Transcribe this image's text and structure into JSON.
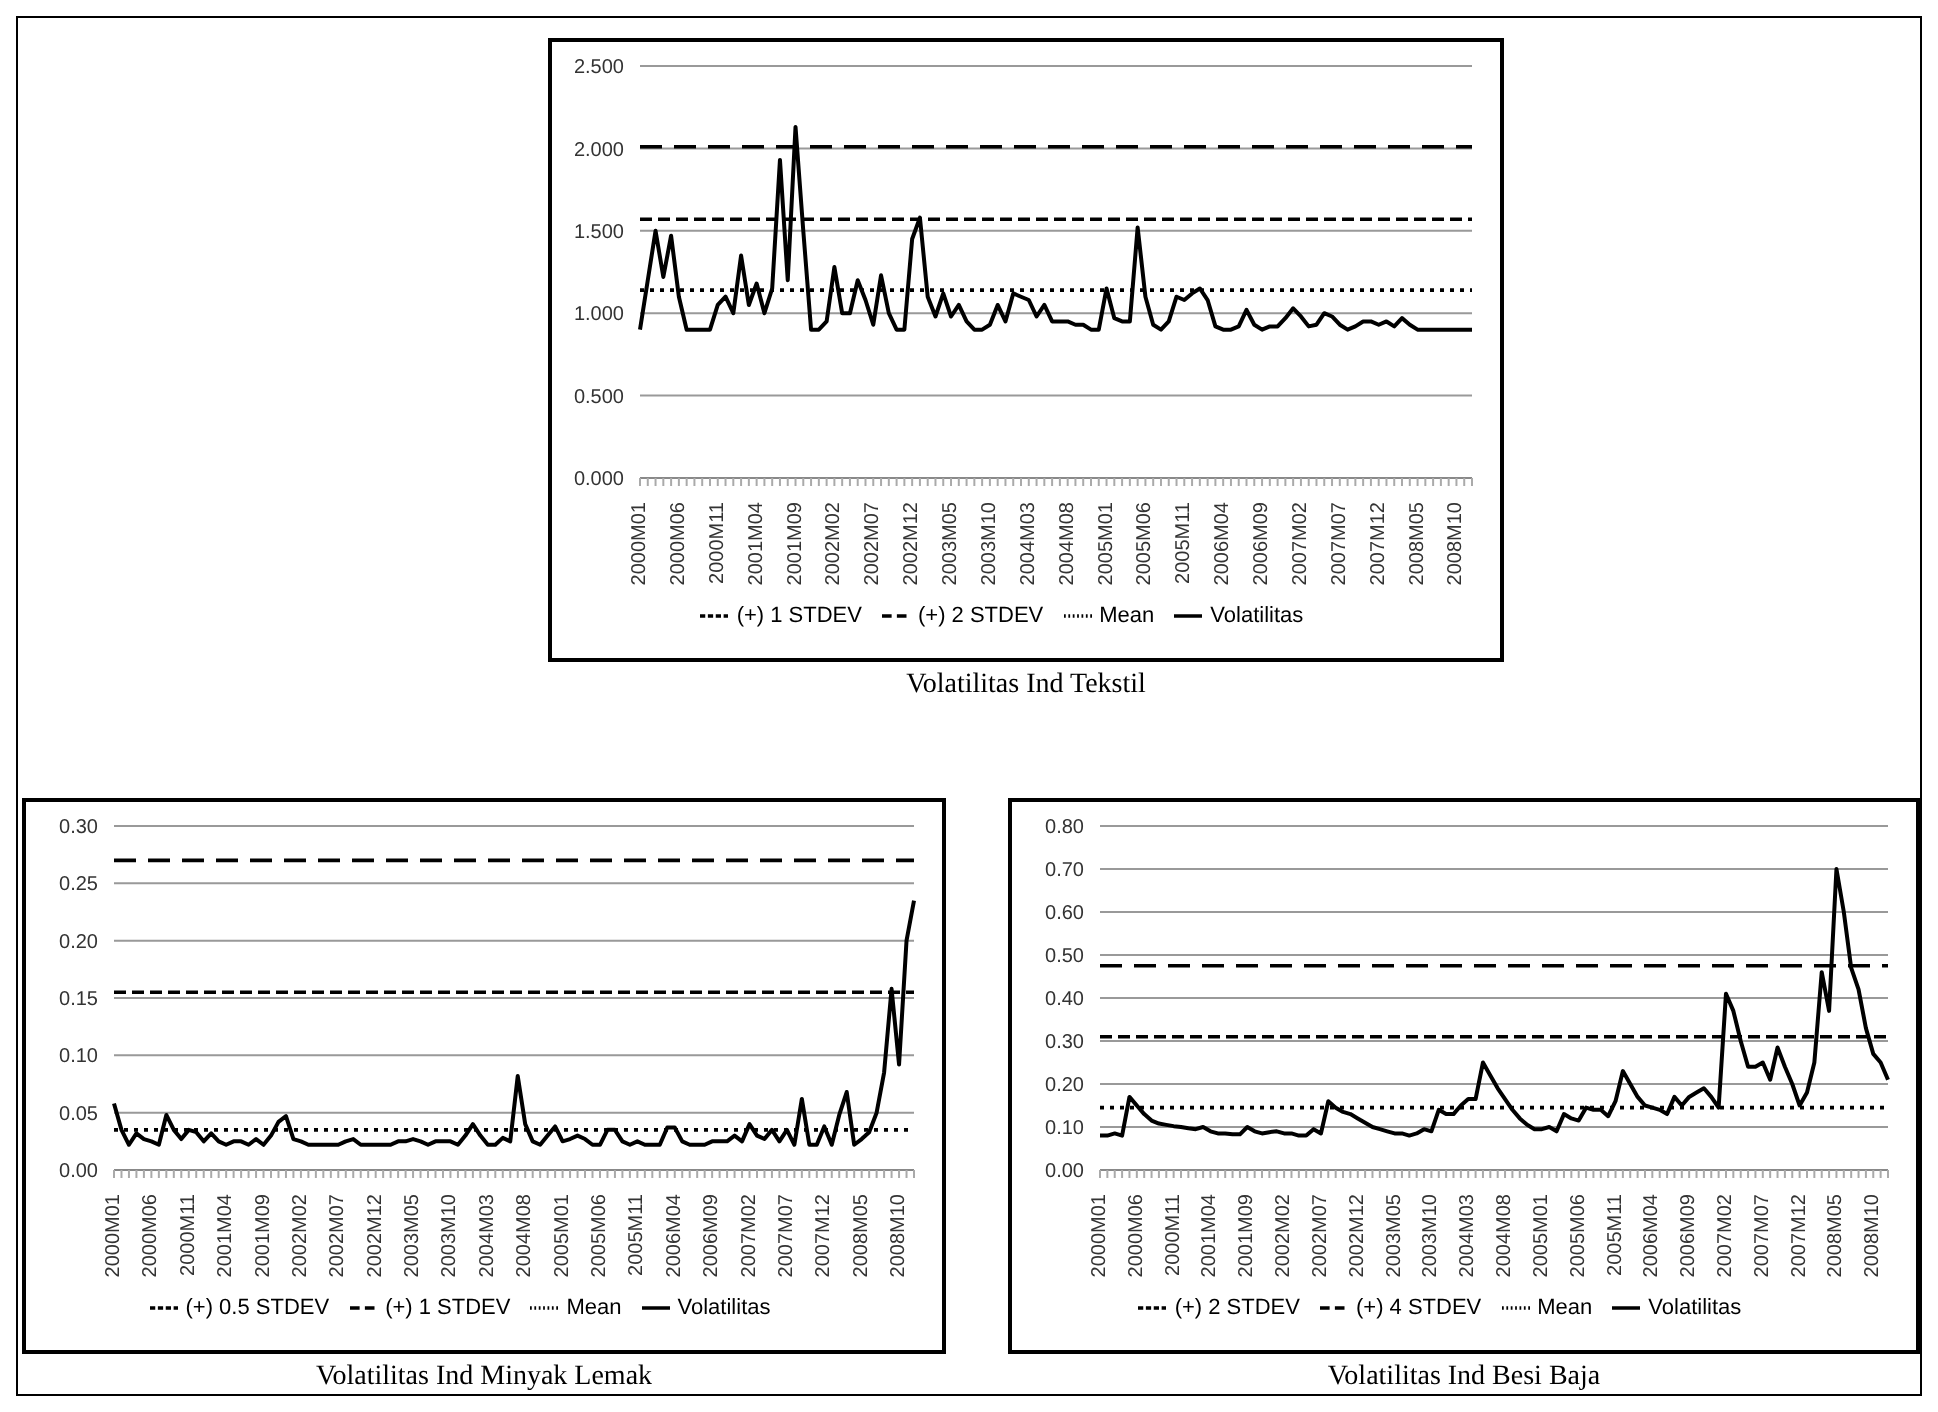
{
  "chart_data": [
    {
      "type": "line",
      "title": "Volatilitas Ind Tekstil",
      "categories": [
        "2000M01",
        null,
        null,
        null,
        null,
        "2000M06",
        null,
        null,
        null,
        null,
        "2000M11",
        null,
        null,
        null,
        null,
        "2001M04",
        null,
        null,
        null,
        null,
        "2001M09",
        null,
        null,
        null,
        null,
        "2002M02",
        null,
        null,
        null,
        null,
        "2002M07",
        null,
        null,
        null,
        null,
        "2002M12",
        null,
        null,
        null,
        null,
        "2003M05",
        null,
        null,
        null,
        null,
        "2003M10",
        null,
        null,
        null,
        null,
        "2004M03",
        null,
        null,
        null,
        null,
        "2004M08",
        null,
        null,
        null,
        null,
        "2005M01",
        null,
        null,
        null,
        null,
        "2005M06",
        null,
        null,
        null,
        null,
        "2005M11",
        null,
        null,
        null,
        null,
        "2006M04",
        null,
        null,
        null,
        null,
        "2006M09",
        null,
        null,
        null,
        null,
        "2007M02",
        null,
        null,
        null,
        null,
        "2007M07",
        null,
        null,
        null,
        null,
        "2007M12",
        null,
        null,
        null,
        null,
        "2008M05",
        null,
        null,
        null,
        null,
        "2008M10",
        null,
        null
      ],
      "ylim": [
        0,
        2.5
      ],
      "yticks": [
        {
          "value": 0,
          "label": "0.000"
        },
        {
          "value": 0.5,
          "label": "0.500"
        },
        {
          "value": 1,
          "label": "1.000"
        },
        {
          "value": 1.5,
          "label": "1.500"
        },
        {
          "value": 2,
          "label": "2.000"
        },
        {
          "value": 2.5,
          "label": "2.500"
        }
      ],
      "grid": "y",
      "legend": "bottom",
      "marker": "none",
      "series": [
        {
          "name": "Volatilitas",
          "color": "#000000",
          "line_style": "solid",
          "values": [
            0.9,
            1.2,
            1.5,
            1.22,
            1.47,
            1.1,
            0.9,
            0.9,
            0.9,
            0.9,
            1.05,
            1.1,
            1.0,
            1.35,
            1.05,
            1.18,
            1.0,
            1.15,
            1.93,
            1.2,
            2.13,
            1.5,
            0.9,
            0.9,
            0.95,
            1.28,
            1.0,
            1.0,
            1.2,
            1.08,
            0.93,
            1.23,
            1.0,
            0.9,
            0.9,
            1.45,
            1.58,
            1.1,
            0.98,
            1.12,
            0.98,
            1.05,
            0.95,
            0.9,
            0.9,
            0.93,
            1.05,
            0.95,
            1.12,
            1.1,
            1.08,
            0.98,
            1.05,
            0.95,
            0.95,
            0.95,
            0.93,
            0.93,
            0.9,
            0.9,
            1.15,
            0.97,
            0.95,
            0.95,
            1.52,
            1.1,
            0.93,
            0.9,
            0.95,
            1.1,
            1.08,
            1.12,
            1.15,
            1.08,
            0.92,
            0.9,
            0.9,
            0.92,
            1.02,
            0.93,
            0.9,
            0.92,
            0.92,
            0.97,
            1.03,
            0.98,
            0.92,
            0.93,
            1.0,
            0.98,
            0.93,
            0.9,
            0.92,
            0.95,
            0.95,
            0.93,
            0.95,
            0.92,
            0.97,
            0.93,
            0.9,
            0.9,
            0.9,
            0.9,
            0.9,
            0.9,
            0.9,
            0.9
          ]
        },
        {
          "name": "Mean",
          "color": "#000000",
          "line_style": "dotted",
          "values": [
            1.14,
            1.14,
            1.14,
            1.14,
            1.14,
            1.14,
            1.14,
            1.14,
            1.14,
            1.14,
            1.14,
            1.14,
            1.14,
            1.14,
            1.14,
            1.14,
            1.14,
            1.14,
            1.14,
            1.14,
            1.14,
            1.14,
            1.14,
            1.14,
            1.14,
            1.14,
            1.14,
            1.14,
            1.14,
            1.14,
            1.14,
            1.14,
            1.14,
            1.14,
            1.14,
            1.14,
            1.14,
            1.14,
            1.14,
            1.14,
            1.14,
            1.14,
            1.14,
            1.14,
            1.14,
            1.14,
            1.14,
            1.14,
            1.14,
            1.14,
            1.14,
            1.14,
            1.14,
            1.14,
            1.14,
            1.14,
            1.14,
            1.14,
            1.14,
            1.14,
            1.14,
            1.14,
            1.14,
            1.14,
            1.14,
            1.14,
            1.14,
            1.14,
            1.14,
            1.14,
            1.14,
            1.14,
            1.14,
            1.14,
            1.14,
            1.14,
            1.14,
            1.14,
            1.14,
            1.14,
            1.14,
            1.14,
            1.14,
            1.14,
            1.14,
            1.14,
            1.14,
            1.14,
            1.14,
            1.14,
            1.14,
            1.14,
            1.14,
            1.14,
            1.14,
            1.14,
            1.14,
            1.14,
            1.14,
            1.14,
            1.14,
            1.14,
            1.14,
            1.14,
            1.14,
            1.14,
            1.14,
            1.14
          ]
        },
        {
          "name": "(+) 1 STDEV",
          "color": "#000000",
          "line_style": "dashed",
          "values": [
            1.57,
            1.57,
            1.57,
            1.57,
            1.57,
            1.57,
            1.57,
            1.57,
            1.57,
            1.57,
            1.57,
            1.57,
            1.57,
            1.57,
            1.57,
            1.57,
            1.57,
            1.57,
            1.57,
            1.57,
            1.57,
            1.57,
            1.57,
            1.57,
            1.57,
            1.57,
            1.57,
            1.57,
            1.57,
            1.57,
            1.57,
            1.57,
            1.57,
            1.57,
            1.57,
            1.57,
            1.57,
            1.57,
            1.57,
            1.57,
            1.57,
            1.57,
            1.57,
            1.57,
            1.57,
            1.57,
            1.57,
            1.57,
            1.57,
            1.57,
            1.57,
            1.57,
            1.57,
            1.57,
            1.57,
            1.57,
            1.57,
            1.57,
            1.57,
            1.57,
            1.57,
            1.57,
            1.57,
            1.57,
            1.57,
            1.57,
            1.57,
            1.57,
            1.57,
            1.57,
            1.57,
            1.57,
            1.57,
            1.57,
            1.57,
            1.57,
            1.57,
            1.57,
            1.57,
            1.57,
            1.57,
            1.57,
            1.57,
            1.57,
            1.57,
            1.57,
            1.57,
            1.57,
            1.57,
            1.57,
            1.57,
            1.57,
            1.57,
            1.57,
            1.57,
            1.57,
            1.57,
            1.57,
            1.57,
            1.57,
            1.57,
            1.57,
            1.57,
            1.57,
            1.57,
            1.57,
            1.57,
            1.57
          ]
        },
        {
          "name": "(+) 2 STDEV",
          "color": "#000000",
          "line_style": "dashed",
          "values": [
            2.01,
            2.01,
            2.01,
            2.01,
            2.01,
            2.01,
            2.01,
            2.01,
            2.01,
            2.01,
            2.01,
            2.01,
            2.01,
            2.01,
            2.01,
            2.01,
            2.01,
            2.01,
            2.01,
            2.01,
            2.01,
            2.01,
            2.01,
            2.01,
            2.01,
            2.01,
            2.01,
            2.01,
            2.01,
            2.01,
            2.01,
            2.01,
            2.01,
            2.01,
            2.01,
            2.01,
            2.01,
            2.01,
            2.01,
            2.01,
            2.01,
            2.01,
            2.01,
            2.01,
            2.01,
            2.01,
            2.01,
            2.01,
            2.01,
            2.01,
            2.01,
            2.01,
            2.01,
            2.01,
            2.01,
            2.01,
            2.01,
            2.01,
            2.01,
            2.01,
            2.01,
            2.01,
            2.01,
            2.01,
            2.01,
            2.01,
            2.01,
            2.01,
            2.01,
            2.01,
            2.01,
            2.01,
            2.01,
            2.01,
            2.01,
            2.01,
            2.01,
            2.01,
            2.01,
            2.01,
            2.01,
            2.01,
            2.01,
            2.01,
            2.01,
            2.01,
            2.01,
            2.01,
            2.01,
            2.01,
            2.01,
            2.01,
            2.01,
            2.01,
            2.01,
            2.01,
            2.01,
            2.01,
            2.01,
            2.01,
            2.01,
            2.01,
            2.01,
            2.01,
            2.01,
            2.01,
            2.01,
            2.01
          ]
        }
      ]
    },
    {
      "type": "line",
      "title": "Volatilitas Ind Minyak Lemak",
      "categories": [
        "2000M01",
        null,
        null,
        null,
        null,
        "2000M06",
        null,
        null,
        null,
        null,
        "2000M11",
        null,
        null,
        null,
        null,
        "2001M04",
        null,
        null,
        null,
        null,
        "2001M09",
        null,
        null,
        null,
        null,
        "2002M02",
        null,
        null,
        null,
        null,
        "2002M07",
        null,
        null,
        null,
        null,
        "2002M12",
        null,
        null,
        null,
        null,
        "2003M05",
        null,
        null,
        null,
        null,
        "2003M10",
        null,
        null,
        null,
        null,
        "2004M03",
        null,
        null,
        null,
        null,
        "2004M08",
        null,
        null,
        null,
        null,
        "2005M01",
        null,
        null,
        null,
        null,
        "2005M06",
        null,
        null,
        null,
        null,
        "2005M11",
        null,
        null,
        null,
        null,
        "2006M04",
        null,
        null,
        null,
        null,
        "2006M09",
        null,
        null,
        null,
        null,
        "2007M02",
        null,
        null,
        null,
        null,
        "2007M07",
        null,
        null,
        null,
        null,
        "2007M12",
        null,
        null,
        null,
        null,
        "2008M05",
        null,
        null,
        null,
        null,
        "2008M10",
        null,
        null
      ],
      "ylim": [
        0,
        0.3
      ],
      "yticks": [
        {
          "value": 0,
          "label": "0.00"
        },
        {
          "value": 0.05,
          "label": "0.05"
        },
        {
          "value": 0.1,
          "label": "0.10"
        },
        {
          "value": 0.15,
          "label": "0.15"
        },
        {
          "value": 0.2,
          "label": "0.20"
        },
        {
          "value": 0.25,
          "label": "0.25"
        },
        {
          "value": 0.3,
          "label": "0.30"
        }
      ],
      "grid": "y",
      "legend": "bottom",
      "marker": "none",
      "series": [
        {
          "name": "Volatilitas",
          "color": "#000000",
          "line_style": "solid",
          "values": [
            0.058,
            0.035,
            0.022,
            0.032,
            0.027,
            0.025,
            0.022,
            0.048,
            0.035,
            0.027,
            0.035,
            0.033,
            0.025,
            0.032,
            0.025,
            0.022,
            0.025,
            0.025,
            0.022,
            0.027,
            0.022,
            0.03,
            0.042,
            0.047,
            0.027,
            0.025,
            0.022,
            0.022,
            0.022,
            0.022,
            0.022,
            0.025,
            0.027,
            0.022,
            0.022,
            0.022,
            0.022,
            0.022,
            0.025,
            0.025,
            0.027,
            0.025,
            0.022,
            0.025,
            0.025,
            0.025,
            0.022,
            0.03,
            0.04,
            0.03,
            0.022,
            0.022,
            0.028,
            0.025,
            0.082,
            0.04,
            0.025,
            0.022,
            0.03,
            0.038,
            0.025,
            0.027,
            0.03,
            0.027,
            0.022,
            0.022,
            0.035,
            0.035,
            0.025,
            0.022,
            0.025,
            0.022,
            0.022,
            0.022,
            0.037,
            0.037,
            0.025,
            0.022,
            0.022,
            0.022,
            0.025,
            0.025,
            0.025,
            0.03,
            0.025,
            0.04,
            0.03,
            0.027,
            0.035,
            0.025,
            0.035,
            0.022,
            0.062,
            0.022,
            0.022,
            0.038,
            0.022,
            0.048,
            0.068,
            0.022,
            0.027,
            0.033,
            0.05,
            0.085,
            0.158,
            0.092,
            0.2,
            0.235
          ]
        },
        {
          "name": "Mean",
          "color": "#000000",
          "line_style": "dotted",
          "values": [
            0.035,
            0.035,
            0.035,
            0.035,
            0.035,
            0.035,
            0.035,
            0.035,
            0.035,
            0.035,
            0.035,
            0.035,
            0.035,
            0.035,
            0.035,
            0.035,
            0.035,
            0.035,
            0.035,
            0.035,
            0.035,
            0.035,
            0.035,
            0.035,
            0.035,
            0.035,
            0.035,
            0.035,
            0.035,
            0.035,
            0.035,
            0.035,
            0.035,
            0.035,
            0.035,
            0.035,
            0.035,
            0.035,
            0.035,
            0.035,
            0.035,
            0.035,
            0.035,
            0.035,
            0.035,
            0.035,
            0.035,
            0.035,
            0.035,
            0.035,
            0.035,
            0.035,
            0.035,
            0.035,
            0.035,
            0.035,
            0.035,
            0.035,
            0.035,
            0.035,
            0.035,
            0.035,
            0.035,
            0.035,
            0.035,
            0.035,
            0.035,
            0.035,
            0.035,
            0.035,
            0.035,
            0.035,
            0.035,
            0.035,
            0.035,
            0.035,
            0.035,
            0.035,
            0.035,
            0.035,
            0.035,
            0.035,
            0.035,
            0.035,
            0.035,
            0.035,
            0.035,
            0.035,
            0.035,
            0.035,
            0.035,
            0.035,
            0.035,
            0.035,
            0.035,
            0.035,
            0.035,
            0.035,
            0.035,
            0.035,
            0.035,
            0.035,
            0.035,
            0.035,
            0.035,
            0.035,
            0.035,
            0.035
          ]
        },
        {
          "name": "(+) 0.5 STDEV",
          "color": "#000000",
          "line_style": "dashed",
          "values": [
            0.155,
            0.155,
            0.155,
            0.155,
            0.155,
            0.155,
            0.155,
            0.155,
            0.155,
            0.155,
            0.155,
            0.155,
            0.155,
            0.155,
            0.155,
            0.155,
            0.155,
            0.155,
            0.155,
            0.155,
            0.155,
            0.155,
            0.155,
            0.155,
            0.155,
            0.155,
            0.155,
            0.155,
            0.155,
            0.155,
            0.155,
            0.155,
            0.155,
            0.155,
            0.155,
            0.155,
            0.155,
            0.155,
            0.155,
            0.155,
            0.155,
            0.155,
            0.155,
            0.155,
            0.155,
            0.155,
            0.155,
            0.155,
            0.155,
            0.155,
            0.155,
            0.155,
            0.155,
            0.155,
            0.155,
            0.155,
            0.155,
            0.155,
            0.155,
            0.155,
            0.155,
            0.155,
            0.155,
            0.155,
            0.155,
            0.155,
            0.155,
            0.155,
            0.155,
            0.155,
            0.155,
            0.155,
            0.155,
            0.155,
            0.155,
            0.155,
            0.155,
            0.155,
            0.155,
            0.155,
            0.155,
            0.155,
            0.155,
            0.155,
            0.155,
            0.155,
            0.155,
            0.155,
            0.155,
            0.155,
            0.155,
            0.155,
            0.155,
            0.155,
            0.155,
            0.155,
            0.155,
            0.155,
            0.155,
            0.155,
            0.155,
            0.155,
            0.155,
            0.155,
            0.155,
            0.155,
            0.155,
            0.155
          ]
        },
        {
          "name": "(+) 1 STDEV",
          "color": "#000000",
          "line_style": "dashed",
          "values": [
            0.27,
            0.27,
            0.27,
            0.27,
            0.27,
            0.27,
            0.27,
            0.27,
            0.27,
            0.27,
            0.27,
            0.27,
            0.27,
            0.27,
            0.27,
            0.27,
            0.27,
            0.27,
            0.27,
            0.27,
            0.27,
            0.27,
            0.27,
            0.27,
            0.27,
            0.27,
            0.27,
            0.27,
            0.27,
            0.27,
            0.27,
            0.27,
            0.27,
            0.27,
            0.27,
            0.27,
            0.27,
            0.27,
            0.27,
            0.27,
            0.27,
            0.27,
            0.27,
            0.27,
            0.27,
            0.27,
            0.27,
            0.27,
            0.27,
            0.27,
            0.27,
            0.27,
            0.27,
            0.27,
            0.27,
            0.27,
            0.27,
            0.27,
            0.27,
            0.27,
            0.27,
            0.27,
            0.27,
            0.27,
            0.27,
            0.27,
            0.27,
            0.27,
            0.27,
            0.27,
            0.27,
            0.27,
            0.27,
            0.27,
            0.27,
            0.27,
            0.27,
            0.27,
            0.27,
            0.27,
            0.27,
            0.27,
            0.27,
            0.27,
            0.27,
            0.27,
            0.27,
            0.27,
            0.27,
            0.27,
            0.27,
            0.27,
            0.27,
            0.27,
            0.27,
            0.27,
            0.27,
            0.27,
            0.27,
            0.27,
            0.27,
            0.27,
            0.27,
            0.27,
            0.27,
            0.27,
            0.27,
            0.27
          ]
        }
      ]
    },
    {
      "type": "line",
      "title": "Volatilitas Ind Besi Baja",
      "categories": [
        "2000M01",
        null,
        null,
        null,
        null,
        "2000M06",
        null,
        null,
        null,
        null,
        "2000M11",
        null,
        null,
        null,
        null,
        "2001M04",
        null,
        null,
        null,
        null,
        "2001M09",
        null,
        null,
        null,
        null,
        "2002M02",
        null,
        null,
        null,
        null,
        "2002M07",
        null,
        null,
        null,
        null,
        "2002M12",
        null,
        null,
        null,
        null,
        "2003M05",
        null,
        null,
        null,
        null,
        "2003M10",
        null,
        null,
        null,
        null,
        "2004M03",
        null,
        null,
        null,
        null,
        "2004M08",
        null,
        null,
        null,
        null,
        "2005M01",
        null,
        null,
        null,
        null,
        "2005M06",
        null,
        null,
        null,
        null,
        "2005M11",
        null,
        null,
        null,
        null,
        "2006M04",
        null,
        null,
        null,
        null,
        "2006M09",
        null,
        null,
        null,
        null,
        "2007M02",
        null,
        null,
        null,
        null,
        "2007M07",
        null,
        null,
        null,
        null,
        "2007M12",
        null,
        null,
        null,
        null,
        "2008M05",
        null,
        null,
        null,
        null,
        "2008M10",
        null,
        null
      ],
      "ylim": [
        0,
        0.8
      ],
      "yticks": [
        {
          "value": 0,
          "label": "0.00"
        },
        {
          "value": 0.1,
          "label": "0.10"
        },
        {
          "value": 0.2,
          "label": "0.20"
        },
        {
          "value": 0.3,
          "label": "0.30"
        },
        {
          "value": 0.4,
          "label": "0.40"
        },
        {
          "value": 0.5,
          "label": "0.50"
        },
        {
          "value": 0.6,
          "label": "0.60"
        },
        {
          "value": 0.7,
          "label": "0.70"
        },
        {
          "value": 0.8,
          "label": "0.80"
        }
      ],
      "grid": "y",
      "legend": "bottom",
      "marker": "none",
      "series": [
        {
          "name": "Volatilitas",
          "color": "#000000",
          "line_style": "solid",
          "values": [
            0.08,
            0.08,
            0.085,
            0.08,
            0.17,
            0.15,
            0.13,
            0.115,
            0.108,
            0.105,
            0.102,
            0.1,
            0.097,
            0.095,
            0.1,
            0.09,
            0.085,
            0.085,
            0.083,
            0.083,
            0.1,
            0.09,
            0.085,
            0.088,
            0.09,
            0.085,
            0.085,
            0.08,
            0.08,
            0.095,
            0.085,
            0.16,
            0.145,
            0.135,
            0.13,
            0.12,
            0.11,
            0.1,
            0.095,
            0.09,
            0.085,
            0.085,
            0.08,
            0.085,
            0.095,
            0.09,
            0.14,
            0.13,
            0.13,
            0.15,
            0.165,
            0.165,
            0.25,
            0.22,
            0.19,
            0.165,
            0.14,
            0.12,
            0.105,
            0.095,
            0.095,
            0.1,
            0.09,
            0.13,
            0.12,
            0.115,
            0.145,
            0.14,
            0.14,
            0.125,
            0.16,
            0.23,
            0.2,
            0.17,
            0.15,
            0.145,
            0.14,
            0.13,
            0.17,
            0.15,
            0.17,
            0.18,
            0.19,
            0.17,
            0.145,
            0.41,
            0.37,
            0.3,
            0.24,
            0.24,
            0.25,
            0.21,
            0.285,
            0.24,
            0.2,
            0.15,
            0.18,
            0.25,
            0.46,
            0.37,
            0.7,
            0.6,
            0.47,
            0.42,
            0.33,
            0.27,
            0.25,
            0.21
          ]
        },
        {
          "name": "Mean",
          "color": "#000000",
          "line_style": "dotted",
          "values": [
            0.145,
            0.145,
            0.145,
            0.145,
            0.145,
            0.145,
            0.145,
            0.145,
            0.145,
            0.145,
            0.145,
            0.145,
            0.145,
            0.145,
            0.145,
            0.145,
            0.145,
            0.145,
            0.145,
            0.145,
            0.145,
            0.145,
            0.145,
            0.145,
            0.145,
            0.145,
            0.145,
            0.145,
            0.145,
            0.145,
            0.145,
            0.145,
            0.145,
            0.145,
            0.145,
            0.145,
            0.145,
            0.145,
            0.145,
            0.145,
            0.145,
            0.145,
            0.145,
            0.145,
            0.145,
            0.145,
            0.145,
            0.145,
            0.145,
            0.145,
            0.145,
            0.145,
            0.145,
            0.145,
            0.145,
            0.145,
            0.145,
            0.145,
            0.145,
            0.145,
            0.145,
            0.145,
            0.145,
            0.145,
            0.145,
            0.145,
            0.145,
            0.145,
            0.145,
            0.145,
            0.145,
            0.145,
            0.145,
            0.145,
            0.145,
            0.145,
            0.145,
            0.145,
            0.145,
            0.145,
            0.145,
            0.145,
            0.145,
            0.145,
            0.145,
            0.145,
            0.145,
            0.145,
            0.145,
            0.145,
            0.145,
            0.145,
            0.145,
            0.145,
            0.145,
            0.145,
            0.145,
            0.145,
            0.145,
            0.145,
            0.145,
            0.145,
            0.145,
            0.145,
            0.145,
            0.145,
            0.145,
            0.145
          ]
        },
        {
          "name": "(+) 2 STDEV",
          "color": "#000000",
          "line_style": "dashed",
          "values": [
            0.31,
            0.31,
            0.31,
            0.31,
            0.31,
            0.31,
            0.31,
            0.31,
            0.31,
            0.31,
            0.31,
            0.31,
            0.31,
            0.31,
            0.31,
            0.31,
            0.31,
            0.31,
            0.31,
            0.31,
            0.31,
            0.31,
            0.31,
            0.31,
            0.31,
            0.31,
            0.31,
            0.31,
            0.31,
            0.31,
            0.31,
            0.31,
            0.31,
            0.31,
            0.31,
            0.31,
            0.31,
            0.31,
            0.31,
            0.31,
            0.31,
            0.31,
            0.31,
            0.31,
            0.31,
            0.31,
            0.31,
            0.31,
            0.31,
            0.31,
            0.31,
            0.31,
            0.31,
            0.31,
            0.31,
            0.31,
            0.31,
            0.31,
            0.31,
            0.31,
            0.31,
            0.31,
            0.31,
            0.31,
            0.31,
            0.31,
            0.31,
            0.31,
            0.31,
            0.31,
            0.31,
            0.31,
            0.31,
            0.31,
            0.31,
            0.31,
            0.31,
            0.31,
            0.31,
            0.31,
            0.31,
            0.31,
            0.31,
            0.31,
            0.31,
            0.31,
            0.31,
            0.31,
            0.31,
            0.31,
            0.31,
            0.31,
            0.31,
            0.31,
            0.31,
            0.31,
            0.31,
            0.31,
            0.31,
            0.31,
            0.31,
            0.31,
            0.31,
            0.31,
            0.31,
            0.31,
            0.31,
            0.31
          ]
        },
        {
          "name": "(+) 4 STDEV",
          "color": "#000000",
          "line_style": "dashed",
          "values": [
            0.475,
            0.475,
            0.475,
            0.475,
            0.475,
            0.475,
            0.475,
            0.475,
            0.475,
            0.475,
            0.475,
            0.475,
            0.475,
            0.475,
            0.475,
            0.475,
            0.475,
            0.475,
            0.475,
            0.475,
            0.475,
            0.475,
            0.475,
            0.475,
            0.475,
            0.475,
            0.475,
            0.475,
            0.475,
            0.475,
            0.475,
            0.475,
            0.475,
            0.475,
            0.475,
            0.475,
            0.475,
            0.475,
            0.475,
            0.475,
            0.475,
            0.475,
            0.475,
            0.475,
            0.475,
            0.475,
            0.475,
            0.475,
            0.475,
            0.475,
            0.475,
            0.475,
            0.475,
            0.475,
            0.475,
            0.475,
            0.475,
            0.475,
            0.475,
            0.475,
            0.475,
            0.475,
            0.475,
            0.475,
            0.475,
            0.475,
            0.475,
            0.475,
            0.475,
            0.475,
            0.475,
            0.475,
            0.475,
            0.475,
            0.475,
            0.475,
            0.475,
            0.475,
            0.475,
            0.475,
            0.475,
            0.475,
            0.475,
            0.475,
            0.475,
            0.475,
            0.475,
            0.475,
            0.475,
            0.475,
            0.475,
            0.475,
            0.475,
            0.475,
            0.475,
            0.475,
            0.475,
            0.475,
            0.475,
            0.475,
            0.475,
            0.475,
            0.475,
            0.475,
            0.475,
            0.475,
            0.475,
            0.475
          ]
        }
      ]
    }
  ]
}
